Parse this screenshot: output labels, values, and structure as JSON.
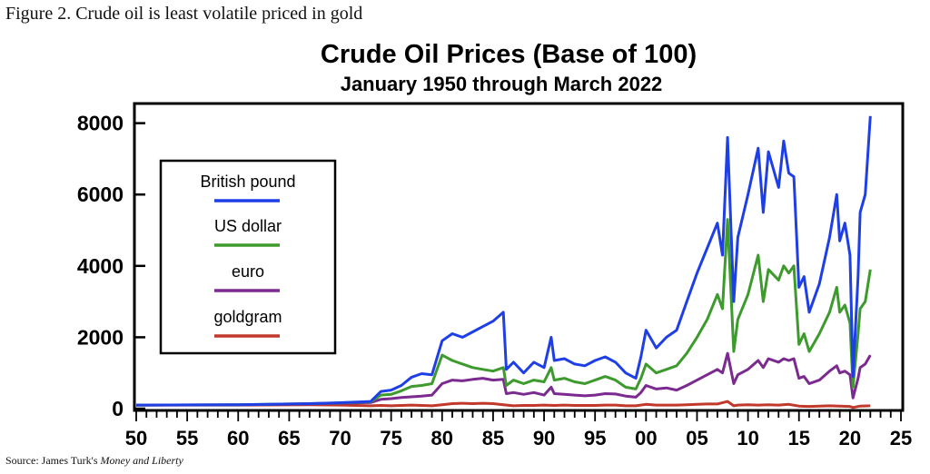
{
  "figure_caption": "Figure 2. Crude oil is least volatile priced in gold",
  "source": {
    "prefix": "Source: James Turk's ",
    "italic": "Money and Liberty"
  },
  "chart_data": {
    "type": "line",
    "title": "Crude Oil Prices (Base of 100)",
    "subtitle": "January 1950 through March 2022",
    "xlabel": "",
    "ylabel": "",
    "xlim": [
      1950,
      2025
    ],
    "ylim": [
      0,
      8500
    ],
    "y_ticks": [
      0,
      2000,
      4000,
      6000,
      8000
    ],
    "y_tick_labels": [
      "0",
      "2000",
      "4000",
      "6000",
      "8000"
    ],
    "x_ticks": [
      1950,
      1955,
      1960,
      1965,
      1970,
      1975,
      1980,
      1985,
      1990,
      1995,
      2000,
      2005,
      2010,
      2015,
      2020,
      2025
    ],
    "x_tick_labels": [
      "50",
      "55",
      "60",
      "65",
      "70",
      "75",
      "80",
      "85",
      "90",
      "95",
      "00",
      "05",
      "10",
      "15",
      "20",
      "25"
    ],
    "grid": false,
    "legend_position": "left",
    "series": [
      {
        "name": "British pound",
        "color": "#1f3fe6",
        "points": [
          [
            1950,
            100
          ],
          [
            1960,
            110
          ],
          [
            1967,
            140
          ],
          [
            1970,
            165
          ],
          [
            1973,
            200
          ],
          [
            1974,
            480
          ],
          [
            1975,
            520
          ],
          [
            1976,
            650
          ],
          [
            1977,
            880
          ],
          [
            1978,
            980
          ],
          [
            1979,
            950
          ],
          [
            1980,
            1900
          ],
          [
            1981,
            2100
          ],
          [
            1982,
            2000
          ],
          [
            1983,
            2150
          ],
          [
            1984,
            2300
          ],
          [
            1985,
            2450
          ],
          [
            1986,
            2700
          ],
          [
            1986.3,
            1100
          ],
          [
            1987,
            1300
          ],
          [
            1988,
            1000
          ],
          [
            1989,
            1300
          ],
          [
            1990,
            1150
          ],
          [
            1990.7,
            2000
          ],
          [
            1991,
            1350
          ],
          [
            1992,
            1400
          ],
          [
            1993,
            1250
          ],
          [
            1994,
            1200
          ],
          [
            1995,
            1350
          ],
          [
            1996,
            1450
          ],
          [
            1997,
            1300
          ],
          [
            1998,
            1000
          ],
          [
            1999,
            850
          ],
          [
            1999.5,
            1450
          ],
          [
            2000,
            2200
          ],
          [
            2001,
            1700
          ],
          [
            2002,
            2000
          ],
          [
            2003,
            2200
          ],
          [
            2004,
            3000
          ],
          [
            2005,
            3800
          ],
          [
            2006,
            4500
          ],
          [
            2007,
            5200
          ],
          [
            2007.5,
            4300
          ],
          [
            2008,
            7600
          ],
          [
            2008.6,
            3000
          ],
          [
            2009,
            4800
          ],
          [
            2010,
            6000
          ],
          [
            2011,
            7300
          ],
          [
            2011.5,
            5500
          ],
          [
            2012,
            7200
          ],
          [
            2013,
            6200
          ],
          [
            2013.5,
            7500
          ],
          [
            2014,
            6600
          ],
          [
            2014.5,
            6500
          ],
          [
            2015,
            3400
          ],
          [
            2015.5,
            3700
          ],
          [
            2016,
            2700
          ],
          [
            2017,
            3500
          ],
          [
            2018,
            4800
          ],
          [
            2018.7,
            6000
          ],
          [
            2019,
            4700
          ],
          [
            2019.5,
            5200
          ],
          [
            2020,
            4300
          ],
          [
            2020.3,
            900
          ],
          [
            2020.8,
            3700
          ],
          [
            2021,
            5500
          ],
          [
            2021.5,
            6000
          ],
          [
            2022,
            8200
          ]
        ]
      },
      {
        "name": "US dollar",
        "color": "#3d9a2c",
        "points": [
          [
            1950,
            100
          ],
          [
            1960,
            110
          ],
          [
            1967,
            140
          ],
          [
            1970,
            160
          ],
          [
            1973,
            190
          ],
          [
            1974,
            380
          ],
          [
            1975,
            400
          ],
          [
            1976,
            500
          ],
          [
            1977,
            620
          ],
          [
            1978,
            650
          ],
          [
            1979,
            700
          ],
          [
            1980,
            1500
          ],
          [
            1981,
            1350
          ],
          [
            1982,
            1250
          ],
          [
            1983,
            1150
          ],
          [
            1984,
            1100
          ],
          [
            1985,
            1050
          ],
          [
            1986,
            1150
          ],
          [
            1986.3,
            650
          ],
          [
            1987,
            800
          ],
          [
            1988,
            700
          ],
          [
            1989,
            800
          ],
          [
            1990,
            750
          ],
          [
            1990.7,
            1150
          ],
          [
            1991,
            800
          ],
          [
            1992,
            850
          ],
          [
            1993,
            750
          ],
          [
            1994,
            700
          ],
          [
            1995,
            800
          ],
          [
            1996,
            900
          ],
          [
            1997,
            800
          ],
          [
            1998,
            600
          ],
          [
            1999,
            550
          ],
          [
            1999.5,
            850
          ],
          [
            2000,
            1250
          ],
          [
            2001,
            1000
          ],
          [
            2002,
            1100
          ],
          [
            2003,
            1200
          ],
          [
            2004,
            1550
          ],
          [
            2005,
            2000
          ],
          [
            2006,
            2500
          ],
          [
            2007,
            3200
          ],
          [
            2007.5,
            2800
          ],
          [
            2008,
            5300
          ],
          [
            2008.6,
            1600
          ],
          [
            2009,
            2500
          ],
          [
            2010,
            3200
          ],
          [
            2011,
            4300
          ],
          [
            2011.5,
            3000
          ],
          [
            2012,
            3900
          ],
          [
            2013,
            3600
          ],
          [
            2013.5,
            4000
          ],
          [
            2014,
            3800
          ],
          [
            2014.5,
            4000
          ],
          [
            2015,
            1800
          ],
          [
            2015.5,
            2100
          ],
          [
            2016,
            1600
          ],
          [
            2017,
            2100
          ],
          [
            2018,
            2700
          ],
          [
            2018.7,
            3400
          ],
          [
            2019,
            2700
          ],
          [
            2019.5,
            2900
          ],
          [
            2020,
            2400
          ],
          [
            2020.3,
            600
          ],
          [
            2020.8,
            2100
          ],
          [
            2021,
            2800
          ],
          [
            2021.5,
            3000
          ],
          [
            2022,
            3900
          ]
        ]
      },
      {
        "name": "euro",
        "color": "#7b2a90",
        "points": [
          [
            1950,
            100
          ],
          [
            1960,
            105
          ],
          [
            1967,
            130
          ],
          [
            1970,
            150
          ],
          [
            1973,
            170
          ],
          [
            1974,
            260
          ],
          [
            1975,
            280
          ],
          [
            1976,
            310
          ],
          [
            1977,
            330
          ],
          [
            1978,
            350
          ],
          [
            1979,
            380
          ],
          [
            1980,
            700
          ],
          [
            1981,
            800
          ],
          [
            1982,
            780
          ],
          [
            1983,
            820
          ],
          [
            1984,
            850
          ],
          [
            1985,
            800
          ],
          [
            1986,
            820
          ],
          [
            1986.3,
            420
          ],
          [
            1987,
            450
          ],
          [
            1988,
            400
          ],
          [
            1989,
            450
          ],
          [
            1990,
            380
          ],
          [
            1990.7,
            600
          ],
          [
            1991,
            420
          ],
          [
            1992,
            400
          ],
          [
            1993,
            380
          ],
          [
            1994,
            360
          ],
          [
            1995,
            380
          ],
          [
            1996,
            420
          ],
          [
            1997,
            410
          ],
          [
            1998,
            350
          ],
          [
            1999,
            320
          ],
          [
            1999.5,
            450
          ],
          [
            2000,
            650
          ],
          [
            2001,
            550
          ],
          [
            2002,
            580
          ],
          [
            2003,
            520
          ],
          [
            2004,
            650
          ],
          [
            2005,
            800
          ],
          [
            2006,
            950
          ],
          [
            2007,
            1100
          ],
          [
            2007.5,
            1000
          ],
          [
            2008,
            1550
          ],
          [
            2008.6,
            700
          ],
          [
            2009,
            950
          ],
          [
            2010,
            1100
          ],
          [
            2011,
            1350
          ],
          [
            2011.5,
            1150
          ],
          [
            2012,
            1400
          ],
          [
            2013,
            1300
          ],
          [
            2013.5,
            1400
          ],
          [
            2014,
            1350
          ],
          [
            2014.5,
            1400
          ],
          [
            2015,
            850
          ],
          [
            2015.5,
            900
          ],
          [
            2016,
            700
          ],
          [
            2017,
            800
          ],
          [
            2018,
            1050
          ],
          [
            2018.7,
            1200
          ],
          [
            2019,
            1000
          ],
          [
            2019.5,
            1050
          ],
          [
            2020,
            950
          ],
          [
            2020.3,
            300
          ],
          [
            2020.8,
            850
          ],
          [
            2021,
            1150
          ],
          [
            2021.5,
            1250
          ],
          [
            2022,
            1500
          ]
        ]
      },
      {
        "name": "goldgram",
        "color": "#c0392b",
        "points": [
          [
            1950,
            100
          ],
          [
            1960,
            100
          ],
          [
            1967,
            110
          ],
          [
            1970,
            100
          ],
          [
            1973,
            80
          ],
          [
            1974,
            90
          ],
          [
            1975,
            80
          ],
          [
            1976,
            90
          ],
          [
            1977,
            100
          ],
          [
            1978,
            90
          ],
          [
            1979,
            80
          ],
          [
            1980,
            110
          ],
          [
            1981,
            140
          ],
          [
            1982,
            150
          ],
          [
            1983,
            140
          ],
          [
            1984,
            150
          ],
          [
            1985,
            140
          ],
          [
            1986,
            110
          ],
          [
            1987,
            80
          ],
          [
            1988,
            90
          ],
          [
            1989,
            90
          ],
          [
            1990,
            100
          ],
          [
            1991,
            90
          ],
          [
            1992,
            100
          ],
          [
            1993,
            90
          ],
          [
            1994,
            90
          ],
          [
            1995,
            90
          ],
          [
            1996,
            100
          ],
          [
            1997,
            100
          ],
          [
            1998,
            80
          ],
          [
            1999,
            80
          ],
          [
            2000,
            120
          ],
          [
            2001,
            100
          ],
          [
            2002,
            100
          ],
          [
            2003,
            100
          ],
          [
            2004,
            110
          ],
          [
            2005,
            120
          ],
          [
            2006,
            130
          ],
          [
            2007,
            130
          ],
          [
            2008,
            200
          ],
          [
            2008.6,
            80
          ],
          [
            2009,
            100
          ],
          [
            2010,
            110
          ],
          [
            2011,
            100
          ],
          [
            2012,
            110
          ],
          [
            2013,
            100
          ],
          [
            2014,
            120
          ],
          [
            2015,
            70
          ],
          [
            2016,
            60
          ],
          [
            2017,
            70
          ],
          [
            2018,
            80
          ],
          [
            2019,
            70
          ],
          [
            2020,
            60
          ],
          [
            2020.3,
            30
          ],
          [
            2021,
            70
          ],
          [
            2022,
            80
          ]
        ]
      }
    ]
  }
}
